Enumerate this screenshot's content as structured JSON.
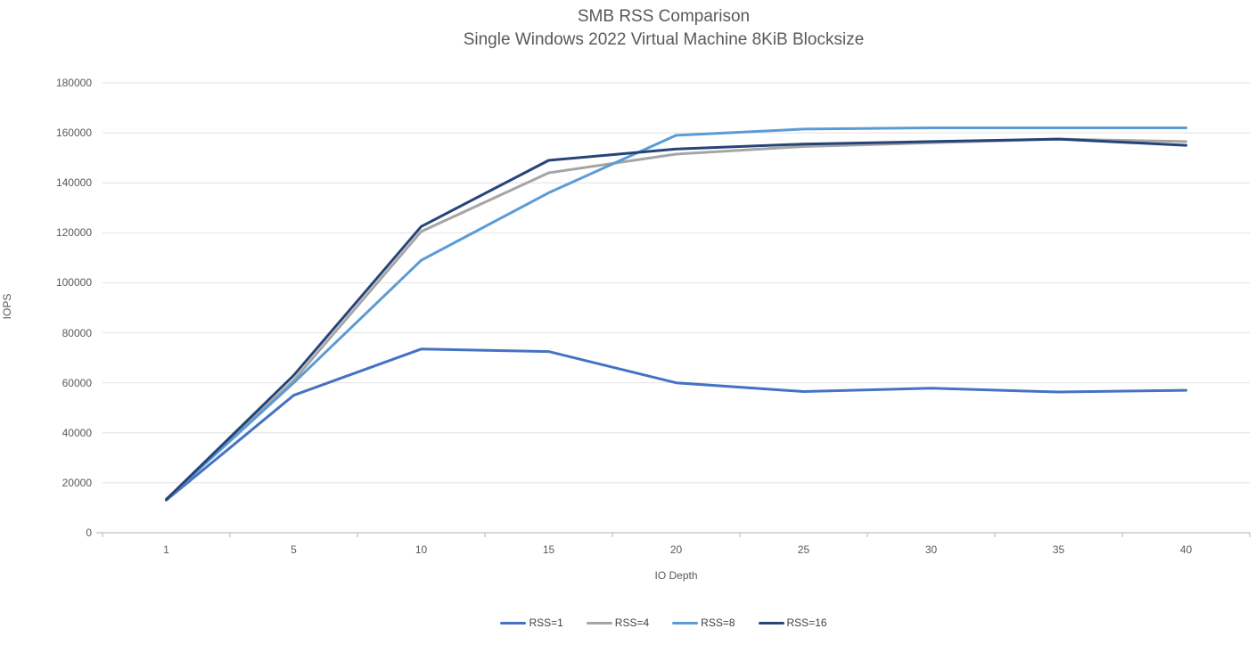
{
  "chart_data": {
    "type": "line",
    "title": "SMB RSS Comparison",
    "subtitle": "Single Windows 2022 Virtual Machine 8KiB Blocksize",
    "xlabel": "IO Depth",
    "ylabel": "IOPS",
    "categories": [
      "1",
      "5",
      "10",
      "15",
      "20",
      "25",
      "30",
      "35",
      "40"
    ],
    "series": [
      {
        "name": "RSS=1",
        "color": "#4472C4",
        "values": [
          13000,
          55000,
          73500,
          72500,
          60000,
          56500,
          57800,
          56300,
          57000
        ]
      },
      {
        "name": "RSS=4",
        "color": "#A5A5A5",
        "values": [
          13200,
          61000,
          120500,
          144000,
          151500,
          154500,
          156000,
          157500,
          156500
        ]
      },
      {
        "name": "RSS=8",
        "color": "#5B9BD5",
        "values": [
          13400,
          60000,
          109000,
          136000,
          159000,
          161500,
          162000,
          162000,
          162000
        ]
      },
      {
        "name": "RSS=16",
        "color": "#264478",
        "values": [
          13300,
          63000,
          122500,
          149000,
          153500,
          155500,
          156500,
          157500,
          155000
        ]
      }
    ],
    "ylim": [
      0,
      180000
    ],
    "ytick_step": 20000,
    "grid": true,
    "legend_position": "bottom"
  },
  "styles": {
    "background": "#FFFFFF",
    "title_color": "#595959",
    "tick_label_color": "#595959",
    "legend_label_color": "#404040",
    "gridline_color": "#E2E2E2",
    "axis_line_color": "#BFBFBF"
  }
}
